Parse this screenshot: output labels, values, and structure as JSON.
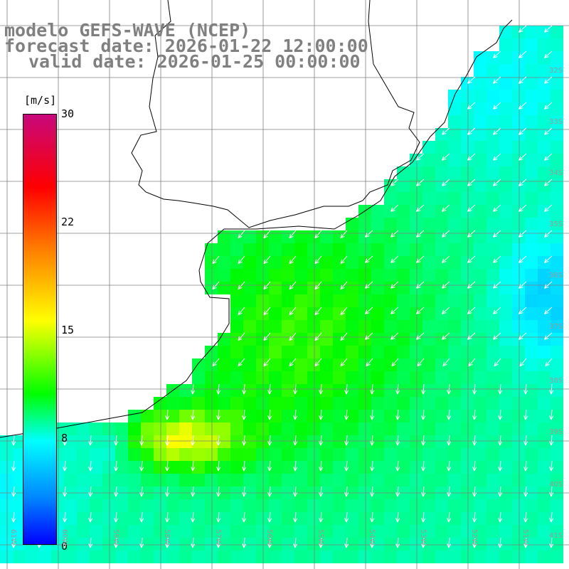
{
  "title": {
    "line1": "modelo GEFS-WAVE (NCEP)",
    "line2": "forecast date: 2026-01-22 12:00:00",
    "line3": "valid date: 2026-01-25 00:00:00"
  },
  "colorbar": {
    "unit": "[m/s]",
    "ticks": [
      {
        "value": 30,
        "label": "30"
      },
      {
        "value": 22,
        "label": "22"
      },
      {
        "value": 15,
        "label": "15"
      },
      {
        "value": 8,
        "label": "8"
      },
      {
        "value": 0,
        "label": "0"
      }
    ],
    "min": 0,
    "max": 30
  },
  "lat_labels": [
    "32S",
    "33S",
    "34S",
    "35S",
    "36S",
    "37S",
    "38S",
    "39S",
    "40S",
    "41S"
  ],
  "lon_labels": [
    "61W",
    "60W",
    "59W",
    "58W",
    "57W",
    "56W",
    "55W",
    "54W",
    "53W",
    "52W",
    "51W"
  ],
  "colors": {
    "land": "#ffffff",
    "grid": "#808080",
    "coast": "#000000",
    "arrow": "#ffffff"
  }
}
